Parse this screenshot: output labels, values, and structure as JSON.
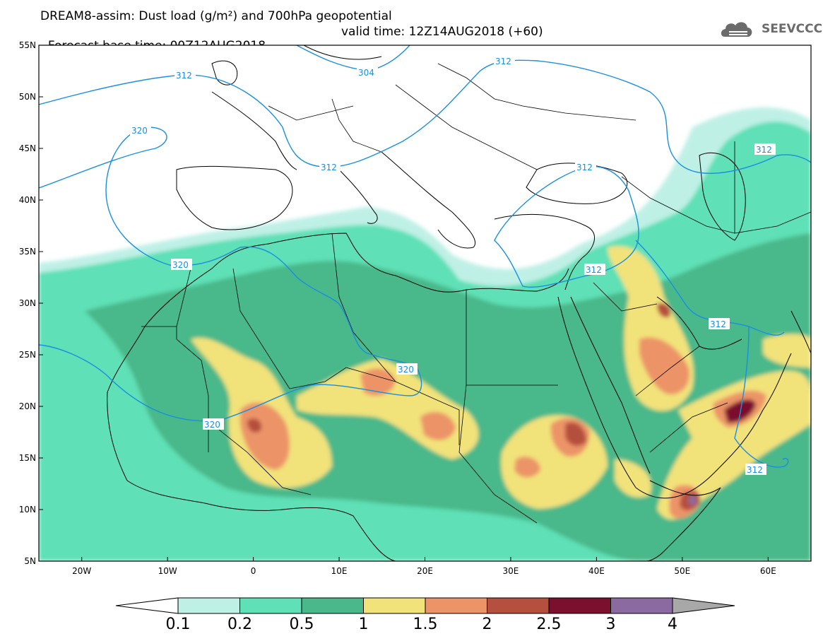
{
  "header": {
    "line1": "DREAM8-assim: Dust load (g/m²) and 700hPa geopotential",
    "line2_left": "Forecast base time: 00Z12AUG2018",
    "line2_right": "valid time: 12Z14AUG2018 (+60)"
  },
  "logo": {
    "text": "SEEVCCC",
    "icon": "cloud-icon"
  },
  "map": {
    "lon_labels": [
      "20W",
      "10W",
      "0",
      "10E",
      "20E",
      "30E",
      "40E",
      "50E",
      "60E"
    ],
    "lat_labels": [
      "55N",
      "50N",
      "45N",
      "40N",
      "35N",
      "30N",
      "25N",
      "20N",
      "15N",
      "10N",
      "5N"
    ],
    "lon_range": [
      -25,
      65
    ],
    "lat_range": [
      5,
      55
    ],
    "contour_labels": [
      "304",
      "312",
      "312",
      "312",
      "312",
      "312",
      "312",
      "312",
      "320",
      "320",
      "320",
      "320"
    ]
  },
  "colorbar": {
    "ticks": [
      "0.1",
      "0.2",
      "0.5",
      "1",
      "1.5",
      "2",
      "2.5",
      "3",
      "4"
    ],
    "colors": [
      "#bff0e6",
      "#5fe0b6",
      "#4ab88a",
      "#f2e27a",
      "#ec9468",
      "#b5503e",
      "#7a0f2e",
      "#8a6aa0",
      "#a8a8a8"
    ],
    "under_color": "#ffffff"
  }
}
